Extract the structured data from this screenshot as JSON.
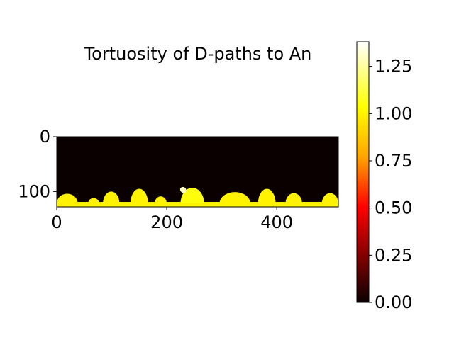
{
  "chart_data": {
    "type": "heatmap",
    "title": "Tortuosity of D-paths to An",
    "xlabel": "",
    "ylabel": "",
    "image_extent": {
      "x": [
        0,
        512
      ],
      "y": [
        128,
        0
      ]
    },
    "x_ticks": [
      0,
      200,
      400
    ],
    "y_ticks": [
      0,
      100
    ],
    "colormap": "hot",
    "colormap_stops": [
      "#0b0000",
      "#ff0000",
      "#ffa500",
      "#ffff00",
      "#ffffff"
    ],
    "background_color": "#0b0000",
    "colorbar": {
      "range": [
        0.0,
        1.38
      ],
      "ticks": [
        0.0,
        0.25,
        0.5,
        0.75,
        1.0,
        1.25
      ],
      "tick_labels": [
        "0.00",
        "0.25",
        "0.50",
        "0.75",
        "1.00",
        "1.25"
      ]
    },
    "regions": {
      "baseline_band": {
        "y_from": 119,
        "y_to": 128,
        "value": 1.0
      },
      "bumps": [
        {
          "x_from": 0,
          "x_to": 38,
          "top": 104,
          "value": 1.0
        },
        {
          "x_from": 57,
          "x_to": 77,
          "top": 112,
          "value": 1.0
        },
        {
          "x_from": 84,
          "x_to": 114,
          "top": 100,
          "value": 1.0
        },
        {
          "x_from": 134,
          "x_to": 166,
          "top": 95,
          "value": 1.0
        },
        {
          "x_from": 178,
          "x_to": 200,
          "top": 109,
          "value": 1.0
        },
        {
          "x_from": 225,
          "x_to": 268,
          "top": 93,
          "value": 1.05
        },
        {
          "x_from": 296,
          "x_to": 352,
          "top": 101,
          "value": 1.0
        },
        {
          "x_from": 366,
          "x_to": 398,
          "top": 95,
          "value": 1.0
        },
        {
          "x_from": 416,
          "x_to": 446,
          "top": 103,
          "value": 1.0
        },
        {
          "x_from": 482,
          "x_to": 512,
          "top": 103,
          "value": 1.0
        }
      ],
      "bright_patch": {
        "x_from": 220,
        "x_to": 240,
        "top": 92,
        "value": 1.3
      }
    }
  }
}
